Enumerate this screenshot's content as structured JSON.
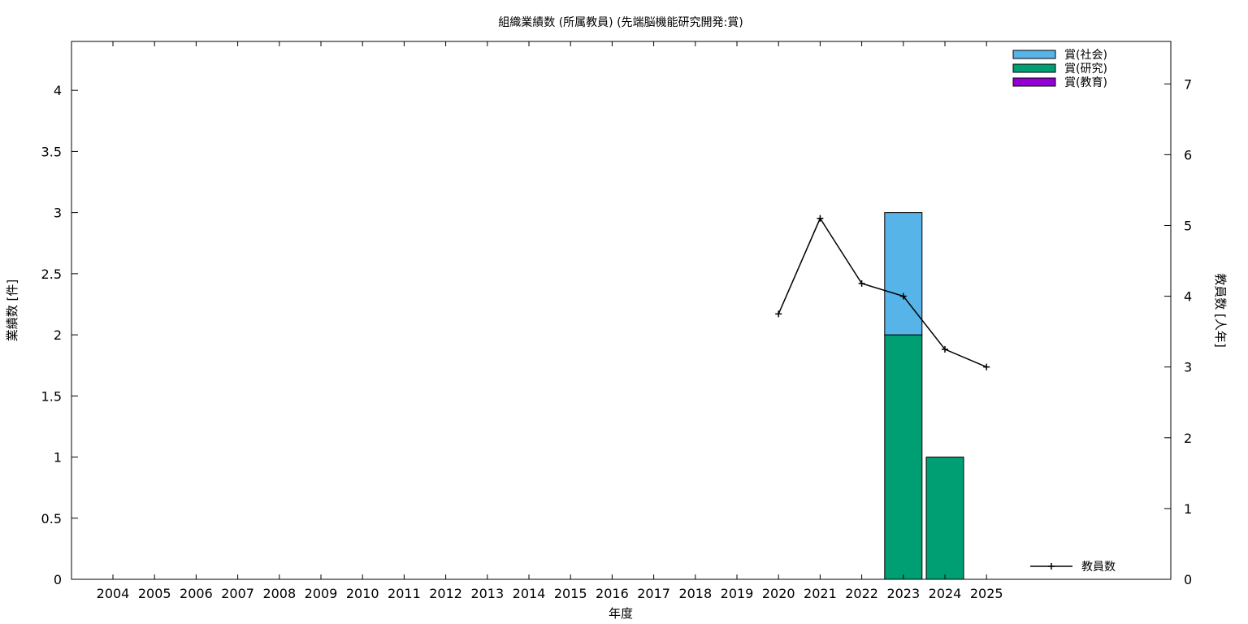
{
  "chart_data": {
    "type": "bar",
    "title": "組織業績数 (所属教員) (先端脳機能研究開発:賞)",
    "xlabel": "年度",
    "ylabel": "業績数 [件]",
    "y2label": "教員数 [人年]",
    "categories": [
      "2004",
      "2005",
      "2006",
      "2007",
      "2008",
      "2009",
      "2010",
      "2011",
      "2012",
      "2013",
      "2014",
      "2015",
      "2016",
      "2017",
      "2018",
      "2019",
      "2020",
      "2021",
      "2022",
      "2023",
      "2024",
      "2025"
    ],
    "ylim": [
      0,
      4.4
    ],
    "yticks": [
      "0",
      "0.5",
      "1",
      "1.5",
      "2",
      "2.5",
      "3",
      "3.5",
      "4"
    ],
    "y2lim": [
      0,
      7.6
    ],
    "y2ticks": [
      "0",
      "1",
      "2",
      "3",
      "4",
      "5",
      "6",
      "7"
    ],
    "grid": false,
    "legend_position": "top-right",
    "stacked": true,
    "series": [
      {
        "name": "賞(研究)",
        "color": "#009e73",
        "values": [
          0,
          0,
          0,
          0,
          0,
          0,
          0,
          0,
          0,
          0,
          0,
          0,
          0,
          0,
          0,
          0,
          0,
          0,
          0,
          2,
          1,
          0
        ]
      },
      {
        "name": "賞(社会)",
        "color": "#56b4e9",
        "values": [
          0,
          0,
          0,
          0,
          0,
          0,
          0,
          0,
          0,
          0,
          0,
          0,
          0,
          0,
          0,
          0,
          0,
          0,
          0,
          1,
          0,
          0
        ]
      },
      {
        "name": "賞(教育)",
        "color": "#9400d3",
        "values": [
          0,
          0,
          0,
          0,
          0,
          0,
          0,
          0,
          0,
          0,
          0,
          0,
          0,
          0,
          0,
          0,
          0,
          0,
          0,
          0,
          0,
          0
        ]
      }
    ],
    "legend_order": [
      "賞(社会)",
      "賞(研究)",
      "賞(教育)"
    ],
    "line_series": {
      "name": "教員数",
      "color": "#000000",
      "axis": "y2",
      "x": [
        "2020",
        "2021",
        "2022",
        "2023",
        "2024",
        "2025"
      ],
      "values": [
        3.75,
        5.1,
        4.18,
        4.0,
        3.25,
        3.0
      ]
    }
  }
}
